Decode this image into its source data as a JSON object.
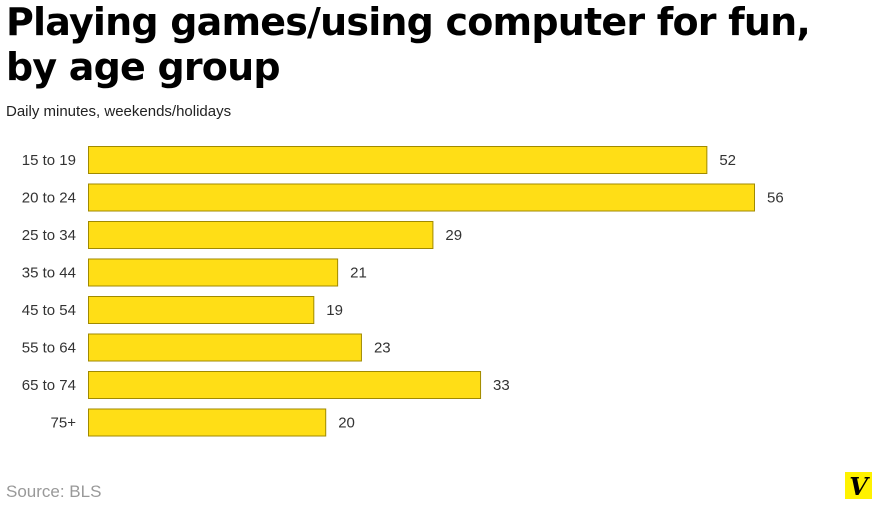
{
  "title_line1": "Playing games/using computer for fun,",
  "title_line2": "by age group",
  "subtitle": "Daily minutes, weekends/holidays",
  "source": "Source: BLS",
  "logo_letter": "V",
  "colors": {
    "bar": "#ffde16",
    "bar_stroke": "#a08a00",
    "logo_bg": "#fff200",
    "logo_fg": "#000000"
  },
  "chart_data": {
    "type": "bar",
    "orientation": "horizontal",
    "categories": [
      "15 to 19",
      "20 to 24",
      "25 to 34",
      "35 to 44",
      "45 to 54",
      "55 to 64",
      "65 to 74",
      "75+"
    ],
    "values": [
      52,
      56,
      29,
      21,
      19,
      23,
      33,
      20
    ],
    "title": "Playing games/using computer for fun, by age group",
    "subtitle": "Daily minutes, weekends/holidays",
    "xlim": [
      0,
      56
    ],
    "grid": false,
    "legend": false
  }
}
